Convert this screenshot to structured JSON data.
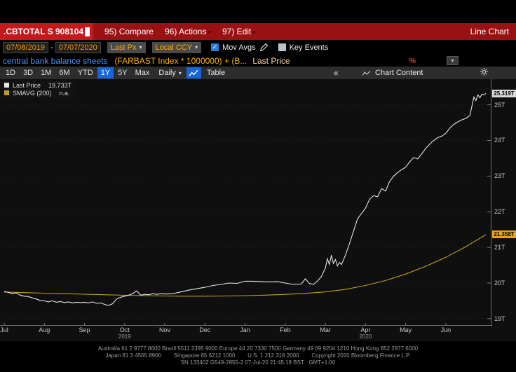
{
  "icons": {
    "dropdown_arrow": "▾",
    "check": "✓"
  },
  "titlebar": {
    "ticker": ".CBTOTAL S 908104",
    "menu_compare": "95) Compare",
    "menu_actions": "96) Actions",
    "menu_edit": "97) Edit",
    "view_label": "Line Chart"
  },
  "controls": {
    "date_from": "07/08/2019",
    "date_separator": "-",
    "date_to": "07/07/2020",
    "price_field": "Last Px",
    "currency": "Local CCY",
    "mov_avgs_label": "Mov Avgs",
    "key_events_label": "Key Events"
  },
  "security_bar": {
    "name": "central bank balance sheets",
    "formula": "(FARBAST Index * 1000000) + (B...",
    "field_label": "Last Price",
    "percent_symbol": "%"
  },
  "toolbar": {
    "ranges": [
      "1D",
      "3D",
      "1M",
      "6M",
      "YTD",
      "1Y",
      "5Y",
      "Max"
    ],
    "selected_range": "1Y",
    "period": "Daily",
    "table_label": "Table",
    "collapse_label": "«",
    "chart_content_label": "Chart Content"
  },
  "legend": {
    "items": [
      {
        "label": "Last Price",
        "value": "19.733T",
        "color": "#e6e6e6"
      },
      {
        "label": "SMAVG (200)",
        "value": "n.a.",
        "color": "#bfa01e"
      }
    ]
  },
  "chart_data": {
    "type": "line",
    "title": "central bank balance sheets (FARBAST Index * 1000000) + (B... Last Price",
    "xlabel": "",
    "ylabel": "",
    "x_unit": "months since 2019-07-08",
    "xlim": [
      0,
      12.05
    ],
    "ylim": [
      18.8,
      25.72
    ],
    "grid": true,
    "legend_position": "top-left",
    "y_ticks": [
      {
        "value": 19,
        "label": "19T"
      },
      {
        "value": 20,
        "label": "20T"
      },
      {
        "value": 21,
        "label": "21T"
      },
      {
        "value": 22,
        "label": "22T"
      },
      {
        "value": 23,
        "label": "23T"
      },
      {
        "value": 24,
        "label": "24T"
      },
      {
        "value": 25,
        "label": "25T"
      }
    ],
    "x_ticks": [
      {
        "value": 0,
        "label": "Jul"
      },
      {
        "value": 1,
        "label": "Aug"
      },
      {
        "value": 2,
        "label": "Sep"
      },
      {
        "value": 3,
        "label": "Oct"
      },
      {
        "value": 4,
        "label": "Nov"
      },
      {
        "value": 5,
        "label": "Dec"
      },
      {
        "value": 6,
        "label": "Jan"
      },
      {
        "value": 7,
        "label": "Feb"
      },
      {
        "value": 8,
        "label": "Mar"
      },
      {
        "value": 9,
        "label": "Apr"
      },
      {
        "value": 10,
        "label": "May"
      },
      {
        "value": 11,
        "label": "Jun"
      }
    ],
    "year_labels": [
      {
        "value": 3,
        "label": "2019"
      },
      {
        "value": 9,
        "label": "2020"
      }
    ],
    "series": [
      {
        "name": "Last Price",
        "color": "#e6e6e6",
        "badge": "25.319T",
        "badge_bg": "#d9d9d9",
        "points": [
          [
            0.0,
            19.76
          ],
          [
            0.1,
            19.74
          ],
          [
            0.2,
            19.7
          ],
          [
            0.3,
            19.72
          ],
          [
            0.4,
            19.66
          ],
          [
            0.5,
            19.63
          ],
          [
            0.6,
            19.62
          ],
          [
            0.7,
            19.58
          ],
          [
            0.8,
            19.55
          ],
          [
            0.9,
            19.51
          ],
          [
            1.0,
            19.5
          ],
          [
            1.1,
            19.47
          ],
          [
            1.2,
            19.5
          ],
          [
            1.3,
            19.46
          ],
          [
            1.4,
            19.48
          ],
          [
            1.5,
            19.45
          ],
          [
            1.6,
            19.47
          ],
          [
            1.7,
            19.44
          ],
          [
            1.8,
            19.46
          ],
          [
            1.9,
            19.45
          ],
          [
            2.0,
            19.46
          ],
          [
            2.1,
            19.44
          ],
          [
            2.2,
            19.47
          ],
          [
            2.3,
            19.43
          ],
          [
            2.4,
            19.44
          ],
          [
            2.5,
            19.4
          ],
          [
            2.6,
            19.37
          ],
          [
            2.7,
            19.42
          ],
          [
            2.8,
            19.55
          ],
          [
            2.9,
            19.6
          ],
          [
            3.0,
            19.63
          ],
          [
            3.1,
            19.66
          ],
          [
            3.2,
            19.7
          ],
          [
            3.3,
            19.78
          ],
          [
            3.4,
            19.66
          ],
          [
            3.5,
            19.68
          ],
          [
            3.6,
            19.67
          ],
          [
            3.7,
            19.7
          ],
          [
            3.8,
            19.68
          ],
          [
            3.9,
            19.7
          ],
          [
            4.0,
            19.69
          ],
          [
            4.2,
            19.7
          ],
          [
            4.4,
            19.75
          ],
          [
            4.6,
            19.8
          ],
          [
            4.8,
            19.84
          ],
          [
            5.0,
            19.88
          ],
          [
            5.2,
            19.93
          ],
          [
            5.4,
            19.96
          ],
          [
            5.6,
            20.0
          ],
          [
            5.8,
            19.99
          ],
          [
            6.0,
            20.05
          ],
          [
            6.2,
            20.05
          ],
          [
            6.4,
            20.04
          ],
          [
            6.6,
            20.03
          ],
          [
            6.8,
            20.04
          ],
          [
            7.0,
            20.0
          ],
          [
            7.2,
            19.96
          ],
          [
            7.4,
            19.97
          ],
          [
            7.5,
            20.12
          ],
          [
            7.6,
            19.99
          ],
          [
            7.7,
            19.96
          ],
          [
            7.8,
            20.05
          ],
          [
            7.9,
            20.18
          ],
          [
            8.0,
            20.42
          ],
          [
            8.05,
            20.68
          ],
          [
            8.1,
            20.52
          ],
          [
            8.15,
            20.78
          ],
          [
            8.2,
            20.55
          ],
          [
            8.25,
            20.66
          ],
          [
            8.3,
            20.48
          ],
          [
            8.35,
            20.58
          ],
          [
            8.4,
            20.52
          ],
          [
            8.5,
            20.78
          ],
          [
            8.6,
            21.1
          ],
          [
            8.7,
            21.45
          ],
          [
            8.8,
            21.8
          ],
          [
            8.9,
            21.95
          ],
          [
            9.0,
            22.1
          ],
          [
            9.1,
            22.35
          ],
          [
            9.2,
            22.45
          ],
          [
            9.3,
            22.42
          ],
          [
            9.4,
            22.65
          ],
          [
            9.5,
            22.58
          ],
          [
            9.6,
            22.85
          ],
          [
            9.7,
            23.0
          ],
          [
            9.8,
            23.1
          ],
          [
            9.9,
            23.18
          ],
          [
            10.0,
            23.25
          ],
          [
            10.1,
            23.4
          ],
          [
            10.2,
            23.52
          ],
          [
            10.3,
            23.48
          ],
          [
            10.4,
            23.62
          ],
          [
            10.5,
            23.78
          ],
          [
            10.6,
            23.9
          ],
          [
            10.7,
            24.0
          ],
          [
            10.8,
            24.08
          ],
          [
            10.9,
            24.12
          ],
          [
            11.0,
            24.2
          ],
          [
            11.1,
            24.35
          ],
          [
            11.2,
            24.45
          ],
          [
            11.3,
            24.52
          ],
          [
            11.4,
            24.58
          ],
          [
            11.5,
            24.62
          ],
          [
            11.6,
            24.7
          ],
          [
            11.7,
            25.22
          ],
          [
            11.75,
            25.12
          ],
          [
            11.8,
            25.28
          ],
          [
            11.85,
            25.2
          ],
          [
            11.9,
            25.3
          ],
          [
            11.95,
            25.28
          ],
          [
            12.0,
            25.319
          ]
        ]
      },
      {
        "name": "SMAVG (200)",
        "color": "#bfa01e",
        "badge": "21.358T",
        "badge_bg": "#eca313",
        "points": [
          [
            0,
            19.745
          ],
          [
            0.5,
            19.73
          ],
          [
            1,
            19.715
          ],
          [
            1.5,
            19.7
          ],
          [
            2,
            19.685
          ],
          [
            2.5,
            19.67
          ],
          [
            3,
            19.655
          ],
          [
            3.5,
            19.645
          ],
          [
            4,
            19.635
          ],
          [
            4.5,
            19.63
          ],
          [
            5,
            19.63
          ],
          [
            5.5,
            19.635
          ],
          [
            6,
            19.645
          ],
          [
            6.5,
            19.66
          ],
          [
            7,
            19.68
          ],
          [
            7.5,
            19.71
          ],
          [
            8,
            19.75
          ],
          [
            8.5,
            19.82
          ],
          [
            9,
            19.93
          ],
          [
            9.5,
            20.07
          ],
          [
            10,
            20.25
          ],
          [
            10.5,
            20.47
          ],
          [
            11,
            20.72
          ],
          [
            11.5,
            21.02
          ],
          [
            12,
            21.358
          ]
        ]
      }
    ]
  },
  "footer": {
    "line1": "Australia 61 2 9777 8600 Brazil 5511 2395 9000 Europe 44 20 7330 7500 Germany 49 69 9204 1210 Hong Kong 852 2977 6000",
    "line2": "Japan 81 3 4565 8900        Singapore 65 6212 1000        U.S. 1 212 318 2000        Copyright 2020 Bloomberg Finance L.P.",
    "line3": "SN 133402 G549-2855-2 07-Jul-20 21:45:19 BST   GMT+1:00"
  }
}
